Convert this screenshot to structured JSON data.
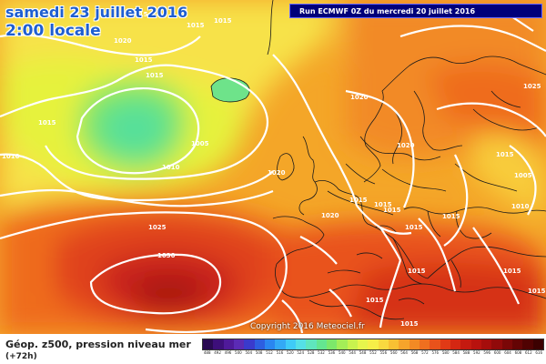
{
  "header": {
    "date": "samedi 23 juillet 2016",
    "local_time": "2:00 locale",
    "run_info": "Run ECMWF 0Z du mercredi 20 juillet 2016"
  },
  "copyright": "Copyright 2016 Meteociel.fr",
  "footer": {
    "title": "Géop. z500, pression niveau mer",
    "subtitle": "(+72h)"
  },
  "isobar_labels": [
    "1015",
    "1015",
    "1020",
    "1015",
    "1015",
    "1015",
    "1010",
    "1005",
    "1010",
    "1015",
    "1020",
    "1020",
    "1020",
    "1015",
    "1015",
    "1015",
    "1015",
    "1015",
    "1015",
    "1025",
    "1010",
    "1005",
    "1025",
    "1030",
    "1015",
    "1015",
    "1015",
    "1015",
    "1015",
    "1020"
  ],
  "legend": {
    "ticks": [
      "488",
      "492",
      "496",
      "500",
      "504",
      "508",
      "512",
      "516",
      "520",
      "524",
      "528",
      "532",
      "536",
      "540",
      "544",
      "548",
      "552",
      "556",
      "560",
      "564",
      "568",
      "572",
      "576",
      "580",
      "584",
      "588",
      "592",
      "596",
      "600",
      "604",
      "608",
      "612",
      "616"
    ],
    "colors": [
      "#2a0a52",
      "#3d0f7a",
      "#4f1a9a",
      "#5b2bb5",
      "#3a3acc",
      "#2d5ee0",
      "#2a86f0",
      "#33a9f5",
      "#3fcbf7",
      "#55e0e6",
      "#5fe6bd",
      "#64e690",
      "#7ce86a",
      "#a4ee57",
      "#c8f24e",
      "#e6f54c",
      "#f6ee48",
      "#f9d93f",
      "#f8c033",
      "#f6a42b",
      "#f38a24",
      "#ef6f1f",
      "#e9521b",
      "#e13a16",
      "#d42712",
      "#c51a10",
      "#b8120e",
      "#a60d0c",
      "#910a0a",
      "#7a0707",
      "#640404",
      "#500202",
      "#3c0101"
    ]
  },
  "colors": {
    "title_blue": "#1f5fd0",
    "run_box": "#00007a",
    "isobar": "#ffffff",
    "coast": "#1a1a1a"
  }
}
